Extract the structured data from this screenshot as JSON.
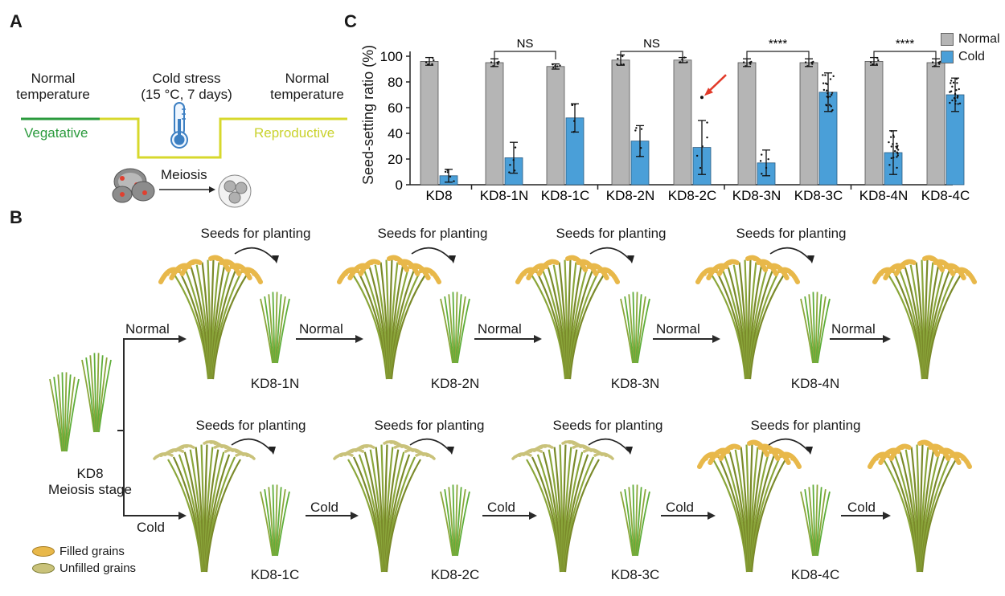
{
  "panels": {
    "a": "A",
    "b": "B",
    "c": "C"
  },
  "panel_a": {
    "left_label": [
      "Normal",
      "temperature"
    ],
    "cold_label": [
      "Cold stress",
      "(15 °C, 7 days)"
    ],
    "right_label": [
      "Normal",
      "temperature"
    ],
    "vegetative": "Vegatative",
    "reproductive": "Reproductive",
    "meiosis": "Meiosis",
    "colors": {
      "vegetative": "#2a9a3c",
      "reproductive": "#c9d22c",
      "trough": "#d7d82c"
    }
  },
  "panel_b": {
    "start_label": [
      "KD8",
      "Meiosis stage"
    ],
    "normal_branch": "Normal",
    "cold_branch": "Cold",
    "seeds_label": "Seeds for planting",
    "normal_row": [
      "KD8-1N",
      "KD8-2N",
      "KD8-3N",
      "KD8-4N"
    ],
    "cold_row": [
      "KD8-1C",
      "KD8-2C",
      "KD8-3C",
      "KD8-4C"
    ],
    "normal_arrow": "Normal",
    "cold_arrow": "Cold",
    "legend": {
      "filled": "Filled grains",
      "unfilled": "Unfilled grains"
    },
    "colors": {
      "filled": "#e8b84a",
      "unfilled": "#c9c27a",
      "plant": "#5fae3a",
      "plant_dark": "#7a8a2a"
    }
  },
  "chart_data": {
    "type": "bar",
    "ylabel": "Seed-setting ratio (%)",
    "ylim": [
      0,
      100
    ],
    "yticks": [
      0,
      20,
      40,
      60,
      80,
      100
    ],
    "groups": [
      {
        "bars": [
          {
            "label": "KD8",
            "normal": 96,
            "normal_err": 3,
            "cold": 7,
            "cold_err": 5
          }
        ]
      },
      {
        "bars": [
          {
            "label": "KD8-1N",
            "normal": 95,
            "normal_err": 3,
            "cold": 21,
            "cold_err": 12
          },
          {
            "label": "KD8-1C",
            "normal": 92,
            "normal_err": 2,
            "cold": 52,
            "cold_err": 11
          }
        ],
        "sig": "NS"
      },
      {
        "bars": [
          {
            "label": "KD8-2N",
            "normal": 97,
            "normal_err": 4,
            "cold": 34,
            "cold_err": 12
          },
          {
            "label": "KD8-2C",
            "normal": 97,
            "normal_err": 2,
            "cold": 29,
            "cold_err": 21
          }
        ],
        "sig": "NS"
      },
      {
        "bars": [
          {
            "label": "KD8-3N",
            "normal": 95,
            "normal_err": 3,
            "cold": 17,
            "cold_err": 10
          },
          {
            "label": "KD8-3C",
            "normal": 95,
            "normal_err": 3,
            "cold": 72,
            "cold_err": 15
          }
        ],
        "sig": "****"
      },
      {
        "bars": [
          {
            "label": "KD8-4N",
            "normal": 96,
            "normal_err": 3,
            "cold": 25,
            "cold_err": 17
          },
          {
            "label": "KD8-4C",
            "normal": 95,
            "normal_err": 3,
            "cold": 70,
            "cold_err": 13
          }
        ],
        "sig": "****"
      }
    ],
    "legend": [
      "Normal",
      "Cold"
    ],
    "colors": {
      "normal": "#b5b5b5",
      "cold": "#4a9fd8",
      "arrow": "#e23b2a"
    }
  }
}
